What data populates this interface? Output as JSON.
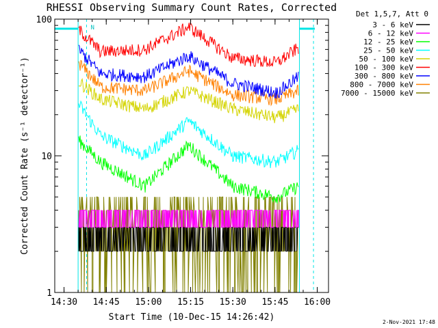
{
  "chart_data": {
    "type": "line",
    "title": "RHESSI Observing Summary Count Rates, Corrected",
    "xlabel": "Start Time (10-Dec-15 14:26:42)",
    "ylabel": "Corrected Count Rate (s⁻¹ detector⁻¹)",
    "x_ticks": [
      "14:30",
      "14:45",
      "15:00",
      "15:15",
      "15:30",
      "15:45",
      "16:00"
    ],
    "y_ticks": [
      "1",
      "10",
      "100"
    ],
    "y_scale": "log",
    "ylim": [
      1,
      100
    ],
    "xlim": [
      "14:26:42",
      "16:04:00"
    ],
    "legend_header": "Det 1,5,7, Att 0",
    "legend_position": "right",
    "markers": {
      "data_start": "14:35:00",
      "data_end": "15:53:40",
      "night_start": "14:38:00",
      "night_end": "15:58:40",
      "flag_letter": "N"
    },
    "series": [
      {
        "name": "3 - 6 keV",
        "color": "#000000",
        "kind": "noise",
        "points": [
          [
            0,
            2.0
          ],
          [
            1,
            3.0
          ]
        ]
      },
      {
        "name": "6 - 12 keV",
        "color": "#ff00ff",
        "kind": "noise",
        "points": [
          [
            0,
            3.0
          ],
          [
            1,
            4.0
          ]
        ]
      },
      {
        "name": "12 - 25 keV",
        "color": "#00ff00",
        "points": [
          [
            0,
            13
          ],
          [
            0.1,
            9
          ],
          [
            0.3,
            6
          ],
          [
            0.5,
            12
          ],
          [
            0.7,
            6
          ],
          [
            0.9,
            5
          ],
          [
            1,
            6
          ]
        ]
      },
      {
        "name": "25 - 50 keV",
        "color": "#00ffff",
        "points": [
          [
            0,
            24
          ],
          [
            0.1,
            14
          ],
          [
            0.3,
            10
          ],
          [
            0.5,
            18
          ],
          [
            0.7,
            10
          ],
          [
            0.9,
            9
          ],
          [
            1,
            11
          ]
        ]
      },
      {
        "name": "50 - 100 keV",
        "color": "#d4d400",
        "points": [
          [
            0,
            35
          ],
          [
            0.1,
            26
          ],
          [
            0.3,
            22
          ],
          [
            0.5,
            30
          ],
          [
            0.7,
            22
          ],
          [
            0.9,
            19
          ],
          [
            1,
            22
          ]
        ]
      },
      {
        "name": "100 - 300 keV",
        "color": "#ff0000",
        "points": [
          [
            0,
            84
          ],
          [
            0.1,
            58
          ],
          [
            0.3,
            60
          ],
          [
            0.5,
            88
          ],
          [
            0.7,
            52
          ],
          [
            0.9,
            48
          ],
          [
            1,
            62
          ]
        ]
      },
      {
        "name": "300 - 800 keV",
        "color": "#0000ff",
        "points": [
          [
            0,
            60
          ],
          [
            0.1,
            40
          ],
          [
            0.3,
            38
          ],
          [
            0.5,
            54
          ],
          [
            0.7,
            34
          ],
          [
            0.9,
            29
          ],
          [
            1,
            38
          ]
        ]
      },
      {
        "name": "800 - 7000 keV",
        "color": "#ff8000",
        "points": [
          [
            0,
            48
          ],
          [
            0.1,
            32
          ],
          [
            0.3,
            30
          ],
          [
            0.5,
            42
          ],
          [
            0.7,
            28
          ],
          [
            0.9,
            26
          ],
          [
            1,
            30
          ]
        ]
      },
      {
        "name": "7000 - 15000 keV",
        "color": "#808000",
        "kind": "noise",
        "points": [
          [
            0,
            1.0
          ],
          [
            1,
            5.0
          ]
        ]
      }
    ]
  },
  "footer": {
    "date": "2-Nov-2021 17:48"
  }
}
